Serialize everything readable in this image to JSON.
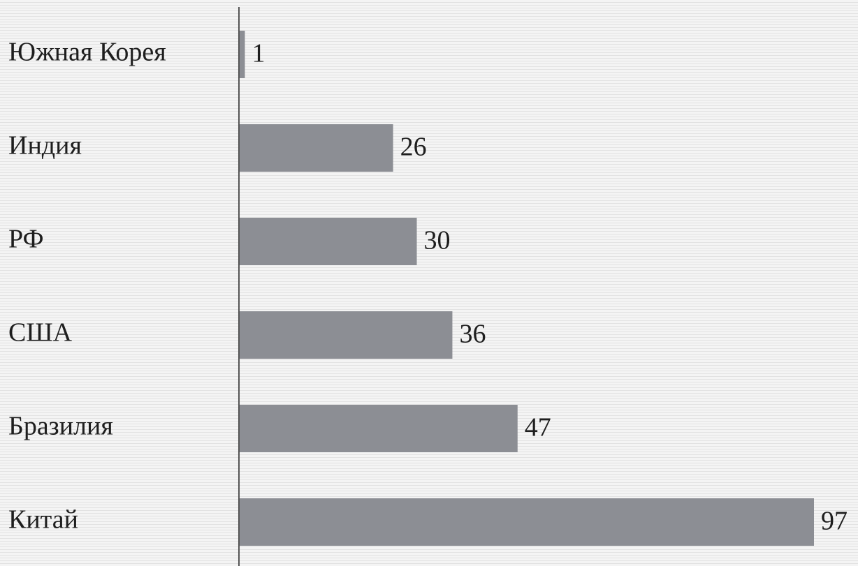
{
  "chart_data": {
    "type": "bar",
    "orientation": "horizontal",
    "categories": [
      "Южная Корея",
      "Индия",
      "РФ",
      "США",
      "Бразилия",
      "Китай"
    ],
    "values": [
      1,
      26,
      30,
      36,
      47,
      97
    ],
    "color": "#8c8e94"
  }
}
